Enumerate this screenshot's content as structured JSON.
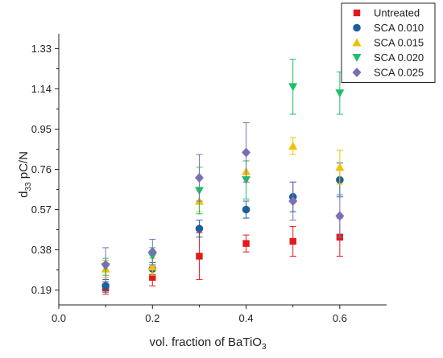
{
  "chart_data": {
    "type": "scatter",
    "title": "",
    "xlabel": {
      "main": "vol. fraction of BaTiO",
      "sub": "3"
    },
    "ylabel": {
      "pre": "d",
      "sub": "33",
      "post": " pC/N"
    },
    "xlim": [
      0.0,
      0.7
    ],
    "ylim": [
      0.12,
      1.4
    ],
    "xticks": [
      0.0,
      0.2,
      0.4,
      0.6
    ],
    "xtick_labels": [
      "0.0",
      "0.2",
      "0.4",
      "0.6"
    ],
    "yticks": [
      0.19,
      0.38,
      0.57,
      0.76,
      0.95,
      1.14,
      1.33
    ],
    "ytick_labels": [
      "0.19",
      "0.38",
      "0.57",
      "0.76",
      "0.95",
      "1.14",
      "1.33"
    ],
    "grid": false,
    "legend_position": "top-right",
    "series": [
      {
        "name": "Untreated",
        "color": "#e31a1c",
        "marker": "square",
        "x": [
          0.1,
          0.2,
          0.3,
          0.4,
          0.5,
          0.6
        ],
        "y": [
          0.2,
          0.25,
          0.35,
          0.41,
          0.42,
          0.44
        ],
        "yerr": [
          0.03,
          0.04,
          0.11,
          0.04,
          0.07,
          0.09
        ]
      },
      {
        "name": "SCA 0.010",
        "color": "#1f5f9b",
        "marker": "circle",
        "x": [
          0.1,
          0.2,
          0.3,
          0.4,
          0.5,
          0.6
        ],
        "y": [
          0.21,
          0.29,
          0.48,
          0.57,
          0.63,
          0.71
        ],
        "yerr": [
          0.03,
          0.03,
          0.04,
          0.04,
          0.07,
          0.08
        ]
      },
      {
        "name": "SCA 0.015",
        "color": "#f2c200",
        "marker": "triangle-up",
        "x": [
          0.1,
          0.2,
          0.3,
          0.4,
          0.5,
          0.6
        ],
        "y": [
          0.29,
          0.3,
          0.61,
          0.75,
          0.87,
          0.77
        ],
        "yerr": [
          0.04,
          0.04,
          0.05,
          0.05,
          0.04,
          0.08
        ]
      },
      {
        "name": "SCA 0.020",
        "color": "#1fbf6a",
        "marker": "triangle-down",
        "x": [
          0.1,
          0.2,
          0.3,
          0.4,
          0.5,
          0.6
        ],
        "y": [
          0.3,
          0.35,
          0.66,
          0.71,
          1.15,
          1.12
        ],
        "yerr": [
          0.04,
          0.04,
          0.11,
          0.09,
          0.13,
          0.1
        ]
      },
      {
        "name": "SCA 0.025",
        "color": "#7a6fb4",
        "marker": "diamond",
        "x": [
          0.1,
          0.2,
          0.3,
          0.4,
          0.5,
          0.6
        ],
        "y": [
          0.31,
          0.37,
          0.72,
          0.84,
          0.61,
          0.54
        ],
        "yerr": [
          0.08,
          0.06,
          0.11,
          0.14,
          0.09,
          0.1
        ]
      }
    ]
  }
}
